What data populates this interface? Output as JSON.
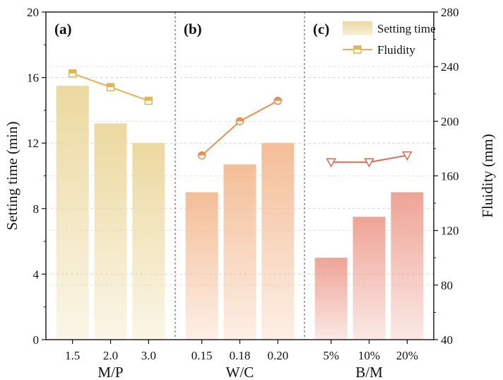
{
  "chart_data": {
    "type": "bar",
    "y_left": {
      "label": "Setting time (min)",
      "ylim": [
        0,
        20
      ],
      "ticks": [
        0,
        4,
        8,
        12,
        16,
        20
      ]
    },
    "y_right": {
      "label": "Fluidity (mm)",
      "ylim": [
        40,
        280
      ],
      "ticks": [
        40,
        80,
        120,
        160,
        200,
        240,
        280
      ]
    },
    "grid": true,
    "legend": {
      "position": "top-right",
      "entries": [
        "Setting time",
        "Fluidity"
      ]
    },
    "panels": [
      {
        "id": "(a)",
        "xlabel": "M/P",
        "categories": [
          "1.5",
          "2.0",
          "3.0"
        ],
        "setting_time": [
          15.5,
          13.2,
          12.0
        ],
        "fluidity": [
          235,
          225,
          215
        ],
        "bar_color": "#ecd9a0",
        "line_color": "#e8b44a",
        "marker": "square"
      },
      {
        "id": "(b)",
        "xlabel": "W/C",
        "categories": [
          "0.15",
          "0.18",
          "0.20"
        ],
        "setting_time": [
          9.0,
          10.7,
          12.0
        ],
        "fluidity": [
          175,
          200,
          215
        ],
        "bar_color": "#f4be98",
        "line_color": "#f08c50",
        "marker": "circle"
      },
      {
        "id": "(c)",
        "xlabel": "B/M",
        "categories": [
          "5%",
          "10%",
          "20%"
        ],
        "setting_time": [
          5.0,
          7.5,
          9.0
        ],
        "fluidity": [
          170,
          170,
          175
        ],
        "bar_color": "#eea496",
        "line_color": "#e06a50",
        "marker": "triangle-down"
      }
    ]
  }
}
